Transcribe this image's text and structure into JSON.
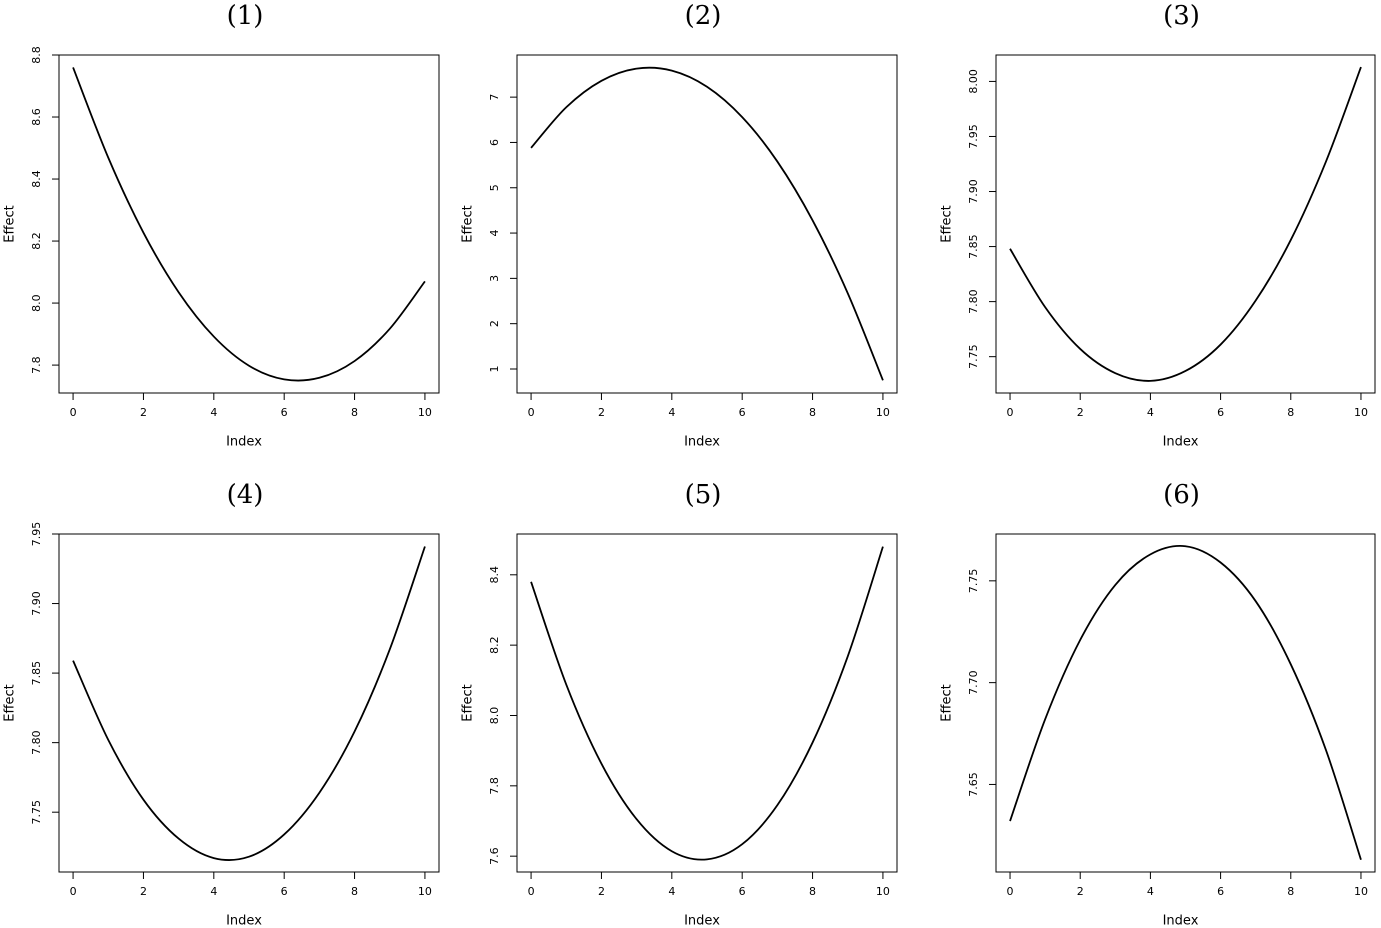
{
  "chart_data": [
    {
      "type": "line",
      "title": "(1)",
      "x_label": "Index",
      "y_label": "Effect",
      "x": [
        0,
        1,
        2,
        3,
        4,
        5,
        6,
        7,
        8,
        9,
        10
      ],
      "series": [
        {
          "color": "#000000",
          "values": [
            8.76,
            8.469,
            8.227,
            8.035,
            7.892,
            7.798,
            7.754,
            7.759,
            7.813,
            7.917,
            8.07
          ]
        }
      ],
      "xlim": [
        -0.4,
        10.4
      ],
      "xticks": [
        0,
        2,
        4,
        6,
        8,
        10
      ],
      "ylim": [
        7.71,
        8.8
      ],
      "yticks": [
        {
          "value": 7.8,
          "label": "7.8"
        },
        {
          "value": 8.0,
          "label": "8.0"
        },
        {
          "value": 8.2,
          "label": "8.2"
        },
        {
          "value": 8.4,
          "label": "8.4"
        },
        {
          "value": 8.6,
          "label": "8.6"
        },
        {
          "value": 8.8,
          "label": "8.8"
        }
      ]
    },
    {
      "type": "line",
      "title": "(2)",
      "x_label": "Index",
      "y_label": "Effect",
      "x": [
        0,
        1,
        2,
        3,
        4,
        5,
        6,
        7,
        8,
        9,
        10
      ],
      "series": [
        {
          "color": "#000000",
          "values": [
            5.88,
            6.776,
            7.36,
            7.63,
            7.586,
            7.23,
            6.56,
            5.578,
            4.282,
            2.672,
            0.75
          ]
        }
      ],
      "xlim": [
        -0.4,
        10.4
      ],
      "xticks": [
        0,
        2,
        4,
        6,
        8,
        10
      ],
      "ylim": [
        0.47,
        7.93
      ],
      "yticks": [
        1,
        2,
        3,
        4,
        5,
        6,
        7
      ]
    },
    {
      "type": "line",
      "title": "(3)",
      "x_label": "Index",
      "y_label": "Effect",
      "x": [
        0,
        1,
        2,
        3,
        4,
        5,
        6,
        7,
        8,
        9,
        10
      ],
      "series": [
        {
          "color": "#000000",
          "values": [
            7.848,
            7.795,
            7.757,
            7.735,
            7.728,
            7.737,
            7.761,
            7.801,
            7.856,
            7.927,
            8.013
          ]
        }
      ],
      "xlim": [
        -0.4,
        10.4
      ],
      "xticks": [
        0,
        2,
        4,
        6,
        8,
        10
      ],
      "ylim": [
        7.717,
        8.024
      ],
      "yticks": [
        7.75,
        {
          "value": 7.8,
          "label": "7.80"
        },
        7.85,
        {
          "value": 7.9,
          "label": "7.90"
        },
        7.95,
        {
          "value": 8.0,
          "label": "8.00"
        }
      ]
    },
    {
      "type": "line",
      "title": "(4)",
      "x_label": "Index",
      "y_label": "Effect",
      "x": [
        0,
        1,
        2,
        3,
        4,
        5,
        6,
        7,
        8,
        9,
        10
      ],
      "series": [
        {
          "color": "#000000",
          "values": [
            7.859,
            7.802,
            7.759,
            7.731,
            7.717,
            7.718,
            7.734,
            7.764,
            7.808,
            7.867,
            7.941
          ]
        }
      ],
      "xlim": [
        -0.4,
        10.4
      ],
      "xticks": [
        0,
        2,
        4,
        6,
        8,
        10
      ],
      "ylim": [
        7.707,
        7.95
      ],
      "yticks": [
        7.75,
        {
          "value": 7.8,
          "label": "7.80"
        },
        7.85,
        {
          "value": 7.9,
          "label": "7.90"
        },
        7.95
      ]
    },
    {
      "type": "line",
      "title": "(5)",
      "x_label": "Index",
      "y_label": "Effect",
      "x": [
        0,
        1,
        2,
        3,
        4,
        5,
        6,
        7,
        8,
        9,
        10
      ],
      "series": [
        {
          "color": "#000000",
          "values": [
            8.38,
            8.088,
            7.863,
            7.705,
            7.614,
            7.591,
            7.634,
            7.745,
            7.923,
            8.168,
            8.48
          ]
        }
      ],
      "xlim": [
        -0.4,
        10.4
      ],
      "xticks": [
        0,
        2,
        4,
        6,
        8,
        10
      ],
      "ylim": [
        7.555,
        8.516
      ],
      "yticks": [
        7.6,
        7.8,
        {
          "value": 8.0,
          "label": "8.0"
        },
        8.2,
        8.4
      ]
    },
    {
      "type": "line",
      "title": "(6)",
      "x_label": "Index",
      "y_label": "Effect",
      "x": [
        0,
        1,
        2,
        3,
        4,
        5,
        6,
        7,
        8,
        9,
        10
      ],
      "series": [
        {
          "color": "#000000",
          "values": [
            7.632,
            7.682,
            7.721,
            7.748,
            7.763,
            7.767,
            7.759,
            7.74,
            7.709,
            7.667,
            7.613
          ]
        }
      ],
      "xlim": [
        -0.4,
        10.4
      ],
      "xticks": [
        0,
        2,
        4,
        6,
        8,
        10
      ],
      "ylim": [
        7.607,
        7.773
      ],
      "yticks": [
        7.65,
        {
          "value": 7.7,
          "label": "7.70"
        },
        7.75
      ]
    }
  ]
}
